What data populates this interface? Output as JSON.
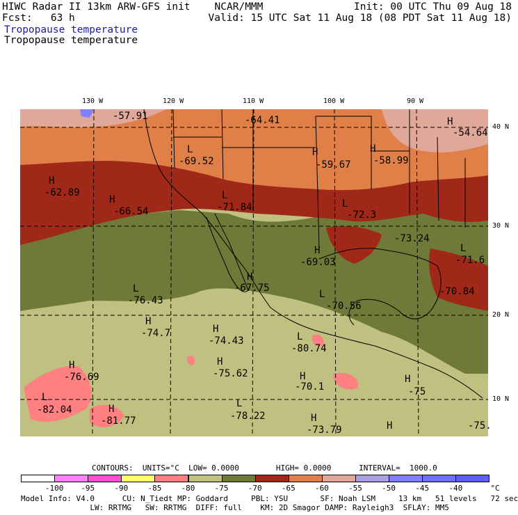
{
  "header": {
    "line1_left": "HIWC Radar II 13km ARW-GFS init    NCAR/MMM",
    "line1_right": "Init: 00 UTC Thu 09 Aug 18",
    "line2_left": "Fcst:   63 h",
    "line2_right": "Valid: 15 UTC Sat 11 Aug 18 (08 PDT Sat 11 Aug 18)",
    "field_title_blue": "Tropopause temperature",
    "field_title_black": "Tropopause temperature"
  },
  "map": {
    "lon_ticks": [
      "130 W",
      "120 W",
      "110 W",
      "100 W",
      "90 W"
    ],
    "lat_ticks": [
      "40 N",
      "30 N",
      "20 N",
      "10 N"
    ],
    "labels": [
      {
        "sym": "",
        "val": "-57.91"
      },
      {
        "sym": "",
        "val": "-64.41"
      },
      {
        "sym": "H",
        "val": "-54.64"
      },
      {
        "sym": "L",
        "val": "-69.52"
      },
      {
        "sym": "H",
        "val": "-59.67"
      },
      {
        "sym": "H",
        "val": "-58.99"
      },
      {
        "sym": "H",
        "val": "-62.89"
      },
      {
        "sym": "H",
        "val": "-66.54"
      },
      {
        "sym": "L",
        "val": "-71.84"
      },
      {
        "sym": "L",
        "val": "-72.3"
      },
      {
        "sym": "",
        "val": "-73.24"
      },
      {
        "sym": "H",
        "val": "-69.03"
      },
      {
        "sym": "L",
        "val": "-71.6"
      },
      {
        "sym": "H",
        "val": "-67.75"
      },
      {
        "sym": "L",
        "val": "-76.43"
      },
      {
        "sym": "L",
        "val": "-70.56"
      },
      {
        "sym": "",
        "val": "-70.84"
      },
      {
        "sym": "H",
        "val": "-74.7"
      },
      {
        "sym": "H",
        "val": "-74.43"
      },
      {
        "sym": "L",
        "val": "-80.74"
      },
      {
        "sym": "H",
        "val": "-76.69"
      },
      {
        "sym": "H",
        "val": "-75.62"
      },
      {
        "sym": "H",
        "val": "-70.1"
      },
      {
        "sym": "H",
        "val": "-75"
      },
      {
        "sym": "L",
        "val": "-82.04"
      },
      {
        "sym": "H",
        "val": "-81.77"
      },
      {
        "sym": "L",
        "val": "-78.22"
      },
      {
        "sym": "H",
        "val": "-73.79"
      },
      {
        "sym": "H",
        "val": ""
      },
      {
        "sym": "",
        "val": "-75."
      }
    ]
  },
  "contours_line": "CONTOURS:  UNITS=°C  LOW= 0.0000        HIGH= 0.0000      INTERVAL=  1000.0",
  "colorbar": {
    "colors": [
      "#ffffff",
      "#ff80ff",
      "#ff50d0",
      "#ffff70",
      "#ff8080",
      "#c0c080",
      "#6f7a38",
      "#a02818",
      "#e08048",
      "#e0a898",
      "#a8a0e0",
      "#8080ff",
      "#7070ff",
      "#6060f0"
    ],
    "labels": [
      "-100",
      "-95",
      "-90",
      "-85",
      "-80",
      "-75",
      "-70",
      "-65",
      "-60",
      "-55",
      "-50",
      "-45",
      "-40"
    ],
    "unit": "°C"
  },
  "footer": {
    "line1": "Model Info: V4.0      CU: N_Tiedt MP: Goddard     PBL: YSU       SF: Noah LSM     13 km   51 levels   72 sec",
    "line2": "               LW: RRTMG   SW: RRTMG  DIFF: full    KM: 2D Smagor DAMP: Rayleigh3  SFLAY: MM5"
  }
}
